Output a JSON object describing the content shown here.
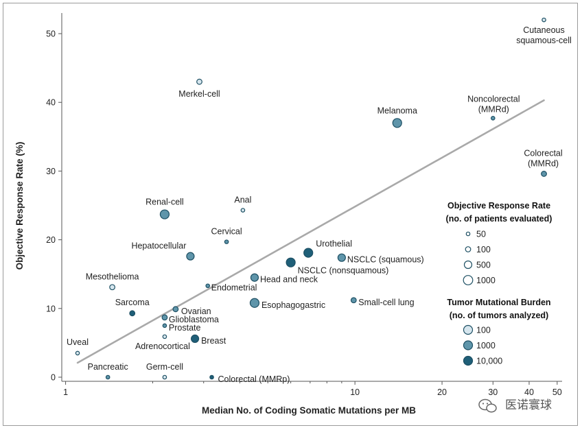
{
  "chart_data": {
    "type": "scatter",
    "xlabel": "Median No. of Coding Somatic Mutations per MB",
    "ylabel": "Objective Response Rate (%)",
    "x_scale": "log",
    "x_ticks": [
      1,
      10,
      20,
      30,
      40,
      50
    ],
    "y_ticks": [
      0,
      10,
      20,
      30,
      40,
      50
    ],
    "xlim": [
      0.97,
      52
    ],
    "ylim": [
      -0.6,
      53
    ],
    "grid": false,
    "legend_position": "right",
    "colors": {
      "light": "#d6e6ee",
      "medium": "#5f95aa",
      "dark": "#1f5f78",
      "stroke": "#1d4f63",
      "trend": "#a9a9a9",
      "axis": "#555555"
    },
    "points": [
      {
        "label": "Cutaneous squamous-cell",
        "label_lines": [
          "Cutaneous",
          "squamous-cell"
        ],
        "x": 45,
        "y": 52,
        "patients": 50,
        "tmb": 100
      },
      {
        "label": "Merkel-cell",
        "x": 2.9,
        "y": 43,
        "patients": 100,
        "tmb": 100
      },
      {
        "label": "Melanoma",
        "x": 14,
        "y": 37,
        "patients": 1000,
        "tmb": 1000
      },
      {
        "label": "Noncolorectal (MMRd)",
        "label_lines": [
          "Noncolorectal",
          "(MMRd)"
        ],
        "x": 30,
        "y": 37.7,
        "patients": 50,
        "tmb": 1000
      },
      {
        "label": "Colorectal (MMRd)",
        "label_lines": [
          "Colorectal",
          "(MMRd)"
        ],
        "x": 45,
        "y": 29.6,
        "patients": 100,
        "tmb": 1000
      },
      {
        "label": "Renal-cell",
        "x": 2.2,
        "y": 23.7,
        "patients": 1000,
        "tmb": 1000
      },
      {
        "label": "Anal",
        "x": 4.1,
        "y": 24.3,
        "patients": 50,
        "tmb": 100
      },
      {
        "label": "Cervical",
        "x": 3.6,
        "y": 19.7,
        "patients": 50,
        "tmb": 1000
      },
      {
        "label": "Hepatocellular",
        "x": 2.7,
        "y": 17.6,
        "patients": 500,
        "tmb": 1000
      },
      {
        "label": "Urothelial",
        "x": 6.9,
        "y": 18.1,
        "patients": 1000,
        "tmb": 10000
      },
      {
        "label": "NSCLC (squamous)",
        "x": 9.0,
        "y": 17.4,
        "patients": 500,
        "tmb": 1000
      },
      {
        "label": "NSCLC (nonsquamous)",
        "x": 6.0,
        "y": 16.7,
        "patients": 1000,
        "tmb": 10000
      },
      {
        "label": "Mesothelioma",
        "x": 1.45,
        "y": 13.1,
        "patients": 100,
        "tmb": 100
      },
      {
        "label": "Head and neck",
        "x": 4.5,
        "y": 14.5,
        "patients": 500,
        "tmb": 1000
      },
      {
        "label": "Endometrial",
        "x": 3.1,
        "y": 13.3,
        "patients": 50,
        "tmb": 1000
      },
      {
        "label": "Small-cell lung",
        "x": 9.9,
        "y": 11.2,
        "patients": 100,
        "tmb": 1000
      },
      {
        "label": "Esophagogastric",
        "x": 4.5,
        "y": 10.8,
        "patients": 1000,
        "tmb": 1000
      },
      {
        "label": "Sarcoma",
        "x": 1.7,
        "y": 9.3,
        "patients": 100,
        "tmb": 10000
      },
      {
        "label": "Ovarian",
        "x": 2.4,
        "y": 9.9,
        "patients": 100,
        "tmb": 1000
      },
      {
        "label": "Glioblastoma",
        "x": 2.2,
        "y": 8.7,
        "patients": 100,
        "tmb": 1000
      },
      {
        "label": "Prostate",
        "x": 2.2,
        "y": 7.5,
        "patients": 50,
        "tmb": 1000
      },
      {
        "label": "Adrenocortical",
        "x": 2.2,
        "y": 5.9,
        "patients": 50,
        "tmb": 100
      },
      {
        "label": "Breast",
        "x": 2.8,
        "y": 5.6,
        "patients": 500,
        "tmb": 10000
      },
      {
        "label": "Uveal",
        "x": 1.1,
        "y": 3.5,
        "patients": 50,
        "tmb": 100
      },
      {
        "label": "Pancreatic",
        "x": 1.4,
        "y": 0,
        "patients": 50,
        "tmb": 1000
      },
      {
        "label": "Germ-cell",
        "x": 2.2,
        "y": 0,
        "patients": 50,
        "tmb": 100
      },
      {
        "label": "Colorectal (MMRp)",
        "x": 3.2,
        "y": 0,
        "patients": 50,
        "tmb": 10000
      }
    ],
    "trend_line": {
      "from": [
        1.1,
        2.1
      ],
      "to": [
        45,
        40.3
      ]
    },
    "legend": {
      "response_title_lines": [
        "Objective Response Rate",
        "(no. of patients evaluated)"
      ],
      "response_sizes": [
        {
          "label": "50",
          "patients": 50
        },
        {
          "label": "100",
          "patients": 100
        },
        {
          "label": "500",
          "patients": 500
        },
        {
          "label": "1000",
          "patients": 1000
        }
      ],
      "tmb_title_lines": [
        "Tumor Mutational Burden",
        "(no. of tumors analyzed)"
      ],
      "tmb_shades": [
        {
          "label": "100",
          "tmb": 100
        },
        {
          "label": "1000",
          "tmb": 1000
        },
        {
          "label": "10,000",
          "tmb": 10000
        }
      ]
    }
  },
  "watermark": {
    "icon": "wechat-icon",
    "text": "医诺寰球"
  }
}
